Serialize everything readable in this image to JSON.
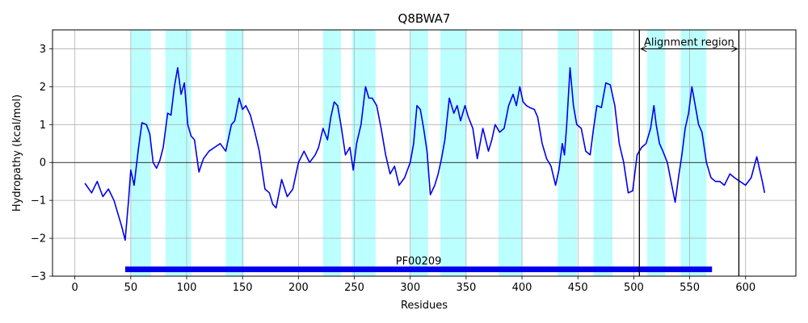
{
  "chart_data": {
    "type": "line",
    "title": "Q8BWA7",
    "xlabel": "Residues",
    "ylabel": "Hydropathy (kcal/mol)",
    "xlim": [
      -20,
      645
    ],
    "ylim": [
      -3,
      3.5
    ],
    "xticks": [
      0,
      50,
      100,
      150,
      200,
      250,
      300,
      350,
      400,
      450,
      500,
      550,
      600
    ],
    "yticks": [
      -3,
      -2,
      -1,
      0,
      1,
      2,
      3
    ],
    "grid": true,
    "colors": {
      "line": "#0000ee",
      "band": "#bbffff",
      "domain": "#0000ee",
      "grid": "#b0b0b0",
      "zero_line": "#000000"
    },
    "hydrophobic_bands": [
      [
        50,
        68
      ],
      [
        81,
        104
      ],
      [
        135,
        151
      ],
      [
        222,
        238
      ],
      [
        248,
        269
      ],
      [
        300,
        316
      ],
      [
        327,
        350
      ],
      [
        379,
        400
      ],
      [
        432,
        449
      ],
      [
        464,
        481
      ],
      [
        512,
        528
      ],
      [
        542,
        565
      ]
    ],
    "alignment_region": {
      "label": "Alignment region",
      "start": 505,
      "end": 594
    },
    "domain": {
      "label": "PF00209",
      "start": 45,
      "end": 570,
      "y": -2.82
    },
    "series": [
      {
        "x": [
          9,
          15,
          20,
          25,
          30,
          35,
          38,
          42,
          45,
          48,
          50,
          53,
          57,
          60,
          64,
          67,
          70,
          73,
          76,
          79,
          83,
          86,
          89,
          92,
          95,
          98,
          101,
          104,
          107,
          111,
          115,
          120,
          125,
          130,
          135,
          140,
          143,
          147,
          150,
          153,
          157,
          161,
          165,
          170,
          174,
          177,
          180,
          185,
          190,
          195,
          200,
          205,
          210,
          215,
          218,
          222,
          226,
          229,
          232,
          235,
          238,
          242,
          246,
          249,
          252,
          256,
          260,
          263,
          266,
          270,
          274,
          278,
          282,
          286,
          290,
          295,
          300,
          303,
          306,
          309,
          312,
          315,
          318,
          322,
          325,
          328,
          331,
          335,
          339,
          342,
          345,
          349,
          352,
          356,
          360,
          365,
          370,
          373,
          376,
          380,
          384,
          388,
          392,
          395,
          398,
          401,
          404,
          407,
          411,
          414,
          418,
          422,
          426,
          430,
          433,
          436,
          438,
          440,
          443,
          446,
          449,
          453,
          457,
          461,
          464,
          467,
          471,
          475,
          479,
          483,
          487,
          491,
          495,
          499,
          503,
          507,
          511,
          515,
          518,
          520,
          523,
          526,
          530,
          534,
          537,
          540,
          543,
          546,
          549,
          552,
          555,
          558,
          561,
          565,
          569,
          573,
          577,
          581,
          586,
          590,
          595,
          600,
          605,
          610,
          615,
          617
        ],
        "y": [
          -0.55,
          -0.8,
          -0.5,
          -0.9,
          -0.7,
          -1.0,
          -1.3,
          -1.7,
          -2.05,
          -1.0,
          -0.2,
          -0.6,
          0.4,
          1.05,
          1.0,
          0.75,
          0.0,
          -0.15,
          0.05,
          0.4,
          1.3,
          1.25,
          2.0,
          2.5,
          1.8,
          2.1,
          1.0,
          0.7,
          0.6,
          -0.25,
          0.1,
          0.3,
          0.4,
          0.5,
          0.3,
          1.0,
          1.1,
          1.7,
          1.4,
          1.5,
          1.25,
          0.8,
          0.3,
          -0.7,
          -0.8,
          -1.1,
          -1.2,
          -0.45,
          -0.9,
          -0.7,
          0.0,
          0.3,
          0.0,
          0.2,
          0.4,
          0.9,
          0.6,
          1.2,
          1.6,
          1.5,
          1.0,
          0.2,
          0.4,
          -0.2,
          0.5,
          1.0,
          2.0,
          1.7,
          1.7,
          1.5,
          0.9,
          0.2,
          -0.3,
          -0.1,
          -0.6,
          -0.4,
          0.0,
          0.5,
          1.5,
          1.4,
          0.9,
          0.3,
          -0.85,
          -0.6,
          -0.3,
          0.1,
          0.6,
          1.7,
          1.3,
          1.5,
          1.1,
          1.5,
          1.2,
          0.9,
          0.1,
          0.9,
          0.3,
          0.6,
          1.0,
          0.8,
          0.9,
          1.5,
          1.8,
          1.5,
          2.0,
          1.6,
          1.5,
          1.45,
          1.4,
          1.2,
          0.5,
          0.1,
          -0.1,
          -0.6,
          -0.2,
          0.5,
          0.2,
          1.0,
          2.5,
          1.5,
          1.0,
          0.9,
          0.3,
          0.2,
          0.9,
          1.5,
          1.45,
          2.1,
          2.05,
          1.5,
          0.5,
          0.0,
          -0.8,
          -0.75,
          0.2,
          0.4,
          0.5,
          0.9,
          1.5,
          1.0,
          0.5,
          0.3,
          0.0,
          -0.6,
          -1.05,
          -0.4,
          0.2,
          0.9,
          1.3,
          2.0,
          1.5,
          1.0,
          0.8,
          0.0,
          -0.4,
          -0.5,
          -0.5,
          -0.6,
          -0.3,
          -0.4,
          -0.5,
          -0.6,
          -0.4,
          0.15,
          -0.5,
          -0.8
        ]
      }
    ]
  }
}
